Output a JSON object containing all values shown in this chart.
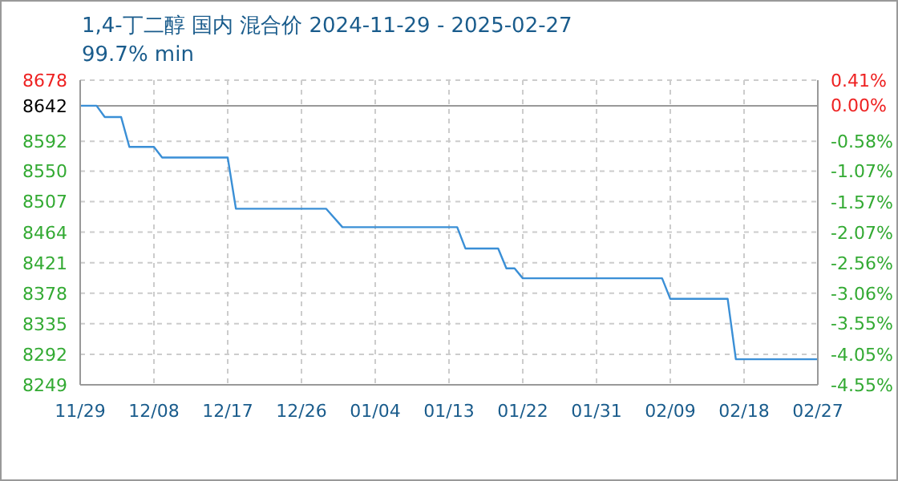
{
  "chart_data": {
    "type": "line",
    "title": "1,4-丁二醇 国内 混合价 2024-11-29 - 2025-02-27",
    "subtitle": "99.7% min",
    "x": [
      "2024-11-29",
      "2024-12-01",
      "2024-12-02",
      "2024-12-04",
      "2024-12-05",
      "2024-12-08",
      "2024-12-09",
      "2024-12-17",
      "2024-12-18",
      "2024-12-29",
      "2024-12-31",
      "2025-01-14",
      "2025-01-15",
      "2025-01-19",
      "2025-01-20",
      "2025-01-21",
      "2025-01-22",
      "2025-02-08",
      "2025-02-09",
      "2025-02-16",
      "2025-02-17",
      "2025-02-27"
    ],
    "series": [
      {
        "color": "#3a8fd6",
        "values": [
          8642,
          8642,
          8626,
          8626,
          8584,
          8584,
          8569,
          8569,
          8497,
          8497,
          8471,
          8471,
          8441,
          8441,
          8413,
          8413,
          8399,
          8399,
          8370,
          8370,
          8285,
          8285
        ]
      }
    ],
    "xlim": [
      "2024-11-29",
      "2025-02-27"
    ],
    "xticks": [
      {
        "value": "2024-11-29",
        "label": "11/29"
      },
      {
        "value": "2024-12-08",
        "label": "12/08"
      },
      {
        "value": "2024-12-17",
        "label": "12/17"
      },
      {
        "value": "2024-12-26",
        "label": "12/26"
      },
      {
        "value": "2025-01-04",
        "label": "01/04"
      },
      {
        "value": "2025-01-13",
        "label": "01/13"
      },
      {
        "value": "2025-01-22",
        "label": "01/22"
      },
      {
        "value": "2025-01-31",
        "label": "01/31"
      },
      {
        "value": "2025-02-09",
        "label": "02/09"
      },
      {
        "value": "2025-02-18",
        "label": "02/18"
      },
      {
        "value": "2025-02-27",
        "label": "02/27"
      }
    ],
    "ylim": [
      8249,
      8678
    ],
    "yticks": [
      8678,
      8642,
      8592,
      8550,
      8507,
      8464,
      8421,
      8378,
      8335,
      8292,
      8249
    ],
    "y2lim": [
      -4.55,
      0.41
    ],
    "y2ticks": [
      {
        "value": 0.41,
        "label": "0.41%"
      },
      {
        "value": 0,
        "label": "0.00%"
      },
      {
        "value": -0.58,
        "label": "-0.58%"
      },
      {
        "value": -1.07,
        "label": "-1.07%"
      },
      {
        "value": -1.57,
        "label": "-1.57%"
      },
      {
        "value": -2.07,
        "label": "-2.07%"
      },
      {
        "value": -2.56,
        "label": "-2.56%"
      },
      {
        "value": -3.06,
        "label": "-3.06%"
      },
      {
        "value": -3.55,
        "label": "-3.55%"
      },
      {
        "value": -4.05,
        "label": "-4.05%"
      },
      {
        "value": -4.55,
        "label": "-4.55%"
      }
    ],
    "ref_lines": [
      {
        "axis": "y",
        "value": 8642,
        "color": "#999999"
      }
    ],
    "grid": true,
    "marker": "none",
    "line_style": "solid"
  }
}
